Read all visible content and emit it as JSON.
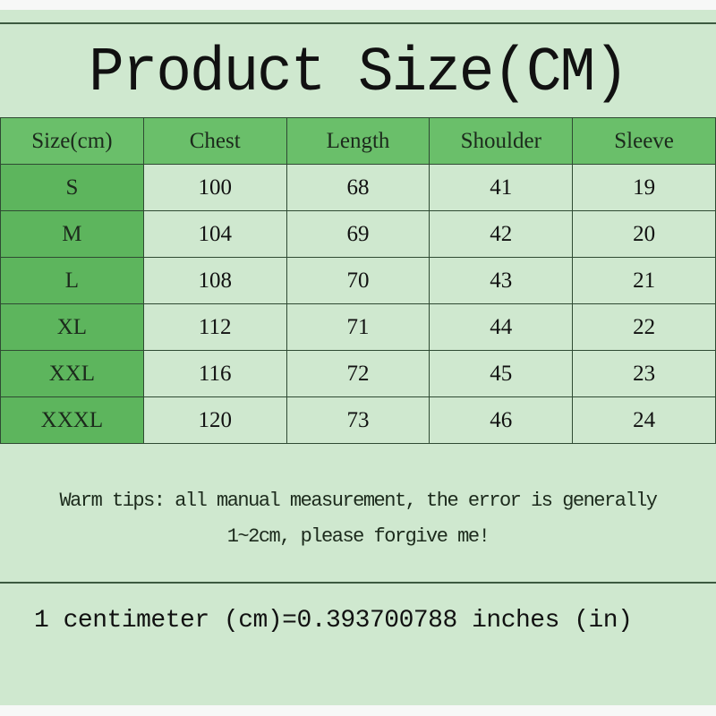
{
  "title": "Product Size(CM)",
  "colors": {
    "background": "#cfe8cf",
    "header": "#6abf6a",
    "size_column": "#5db55d"
  },
  "table": {
    "headers": [
      "Size(cm)",
      "Chest",
      "Length",
      "Shoulder",
      "Sleeve"
    ],
    "rows": [
      [
        "S",
        "100",
        "68",
        "41",
        "19"
      ],
      [
        "M",
        "104",
        "69",
        "42",
        "20"
      ],
      [
        "L",
        "108",
        "70",
        "43",
        "21"
      ],
      [
        "XL",
        "112",
        "71",
        "44",
        "22"
      ],
      [
        "XXL",
        "116",
        "72",
        "45",
        "23"
      ],
      [
        "XXXL",
        "120",
        "73",
        "46",
        "24"
      ]
    ]
  },
  "tips": {
    "line1": "Warm tips: all manual measurement, the error is generally",
    "line2": "1~2cm, please forgive me!"
  },
  "conversion": "1 centimeter (cm)=0.393700788 inches (in)"
}
